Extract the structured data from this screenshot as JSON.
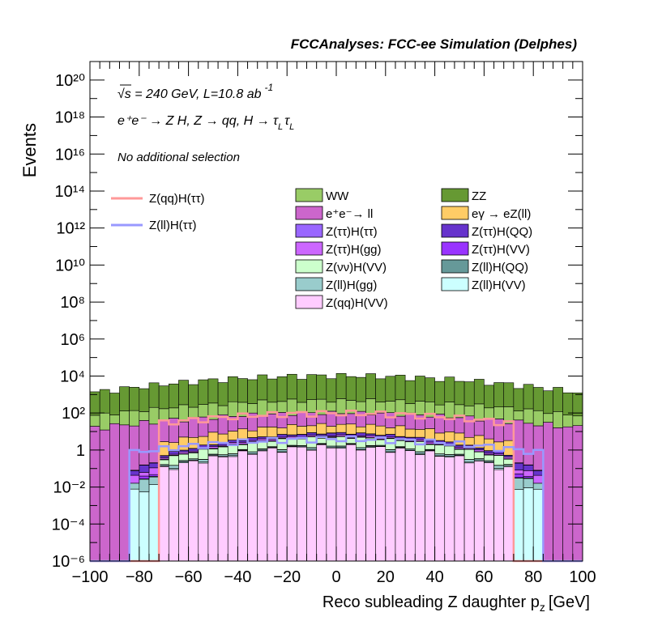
{
  "header": "FCCAnalyses: FCC-ee Simulation (Delphes)",
  "annotations": {
    "energy": "√s = 240 GeV, L=10.8 ab",
    "energy_sup": "-1",
    "process": "e⁺e⁻ → Z H, Z → qq, H → τ",
    "process_sub": "L",
    "selection": "No additional selection"
  },
  "chart_data": {
    "type": "bar",
    "stacked": true,
    "yscale": "log",
    "xlabel": "Reco subleading Z daughter p",
    "xlabel_sub": "z",
    "xlabel_unit": "[GeV]",
    "ylabel": "Events",
    "xlim": [
      -100,
      100
    ],
    "ylim": [
      1e-06,
      1e+21
    ],
    "xticks": [
      "−100",
      "−80",
      "−60",
      "−40",
      "−20",
      "0",
      "20",
      "40",
      "60",
      "80",
      "100"
    ],
    "yticks": [
      "10⁻⁶",
      "10⁻⁴",
      "10⁻²",
      "1",
      "10²",
      "10⁴",
      "10⁶",
      "10⁸",
      "10¹⁰",
      "10¹²",
      "10¹⁴",
      "10¹⁶",
      "10¹⁸",
      "10²⁰"
    ],
    "bin_edges": [
      -100,
      100
    ],
    "bins": 50,
    "stack_layers": [
      {
        "name": "Z(qq)H(VV)",
        "color": "#ffccff",
        "profile": {
          "peak": 1.5,
          "sigma": 30,
          "range": [
            -70,
            70
          ]
        }
      },
      {
        "name": "Z(ll)H(VV)",
        "color": "#ccffff",
        "profile": {
          "peak": 0.1,
          "sigma": 35,
          "range": [
            -85,
            85
          ]
        }
      },
      {
        "name": "Z(ll)H(gg)",
        "color": "#99cccc",
        "profile": {
          "peak": 0.2,
          "sigma": 35,
          "range": [
            -85,
            85
          ]
        }
      },
      {
        "name": "Z(ll)H(QQ)",
        "color": "#669999",
        "profile": {
          "peak": 0.05,
          "sigma": 30,
          "range": [
            -80,
            80
          ]
        }
      },
      {
        "name": "Z(νν)H(VV)",
        "color": "#ccffcc",
        "profile": {
          "peak": 3,
          "sigma": 30,
          "range": [
            -70,
            70
          ]
        }
      },
      {
        "name": "Z(ττ)H(VV)",
        "color": "#9933ff",
        "profile": {
          "peak": 0.3,
          "sigma": 30,
          "range": [
            -80,
            80
          ]
        }
      },
      {
        "name": "Z(ττ)H(gg)",
        "color": "#cc66ff",
        "profile": {
          "peak": 1,
          "sigma": 30,
          "range": [
            -85,
            85
          ]
        }
      },
      {
        "name": "Z(ττ)H(QQ)",
        "color": "#6633cc",
        "profile": {
          "peak": 2,
          "sigma": 30,
          "range": [
            -85,
            85
          ]
        }
      },
      {
        "name": "Z(ττ)H(ττ)",
        "color": "#9966ff",
        "profile": {
          "peak": 0.2,
          "sigma": 30,
          "range": [
            -85,
            85
          ]
        }
      },
      {
        "name": "eγ → eZ(ll)",
        "color": "#ffcc66",
        "profile": {
          "peak": 15,
          "sigma": 35,
          "range": [
            -70,
            70
          ]
        }
      },
      {
        "name": "e⁺e⁻→ ll",
        "color": "#cc66cc",
        "profile": {
          "peak": 80,
          "sigma": 55,
          "range": [
            -100,
            100
          ]
        }
      },
      {
        "name": "WW",
        "color": "#99cc66",
        "profile": {
          "peak": 400,
          "sigma": 50,
          "range": [
            -100,
            100
          ]
        }
      },
      {
        "name": "ZZ",
        "color": "#669933",
        "profile": {
          "peak": 10000,
          "sigma": 48,
          "range": [
            -100,
            100
          ]
        }
      }
    ],
    "signal_lines": [
      {
        "name": "Z(qq)H(ττ)",
        "color": "#ff9999",
        "profile": {
          "peak": 100,
          "sigma": 45,
          "range": [
            -72,
            72
          ]
        }
      },
      {
        "name": "Z(ll)H(ττ)",
        "color": "#9999ff",
        "profile": {
          "peak": 4,
          "sigma": 45,
          "range": [
            -84,
            84
          ]
        }
      }
    ],
    "legend_order": [
      "WW",
      "ZZ",
      "e⁺e⁻→ ll",
      "eγ → eZ(ll)",
      "Z(ττ)H(ττ)",
      "Z(ττ)H(QQ)",
      "Z(ττ)H(gg)",
      "Z(ττ)H(VV)",
      "Z(νν)H(VV)",
      "Z(ll)H(QQ)",
      "Z(ll)H(gg)",
      "Z(ll)H(VV)",
      "Z(qq)H(VV)"
    ],
    "grid": false,
    "legend_placement": "top-right"
  }
}
